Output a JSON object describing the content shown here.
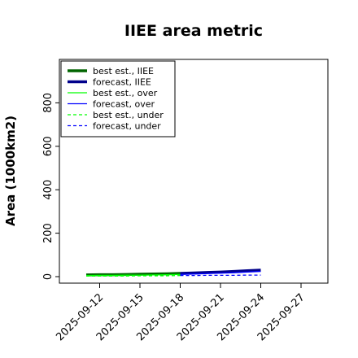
{
  "chart_data": {
    "type": "line",
    "title": "IIEE area metric",
    "xlabel": "",
    "ylabel": "Area (1000km2)",
    "x_ticks": [
      "2025-09-12",
      "2025-09-15",
      "2025-09-18",
      "2025-09-21",
      "2025-09-24",
      "2025-09-27"
    ],
    "highlight_tick": "2025-09-18",
    "highlight_color": "#228b22",
    "xlim": [
      "2025-09-09",
      "2025-09-29"
    ],
    "ylim": [
      -30,
      1000
    ],
    "y_ticks": [
      0,
      200,
      400,
      600,
      800
    ],
    "grid": false,
    "legend_position": "top-left",
    "series": [
      {
        "name": "best est., IIEE",
        "color": "#006400",
        "style": "solid",
        "width": "thick",
        "x": [
          "2025-09-11",
          "2025-09-12",
          "2025-09-13",
          "2025-09-14",
          "2025-09-15",
          "2025-09-16",
          "2025-09-17",
          "2025-09-18"
        ],
        "y": [
          8,
          9,
          9,
          10,
          11,
          12,
          13,
          15
        ]
      },
      {
        "name": "forecast, IIEE",
        "color": "#00008b",
        "style": "solid",
        "width": "thick",
        "x": [
          "2025-09-18",
          "2025-09-19",
          "2025-09-20",
          "2025-09-21",
          "2025-09-22",
          "2025-09-23",
          "2025-09-24"
        ],
        "y": [
          15,
          17,
          19,
          21,
          24,
          27,
          30
        ]
      },
      {
        "name": "best est., over",
        "color": "#00ff00",
        "style": "solid",
        "width": "thin",
        "x": [
          "2025-09-11",
          "2025-09-12",
          "2025-09-13",
          "2025-09-14",
          "2025-09-15",
          "2025-09-16",
          "2025-09-17",
          "2025-09-18"
        ],
        "y": [
          5,
          6,
          6,
          7,
          7,
          8,
          9,
          10
        ]
      },
      {
        "name": "forecast, over",
        "color": "#0000ff",
        "style": "solid",
        "width": "thin",
        "x": [
          "2025-09-18",
          "2025-09-19",
          "2025-09-20",
          "2025-09-21",
          "2025-09-22",
          "2025-09-23",
          "2025-09-24"
        ],
        "y": [
          10,
          12,
          14,
          16,
          18,
          21,
          24
        ]
      },
      {
        "name": "best est., under",
        "color": "#00ff00",
        "style": "dashed",
        "width": "thin",
        "x": [
          "2025-09-11",
          "2025-09-12",
          "2025-09-13",
          "2025-09-14",
          "2025-09-15",
          "2025-09-16",
          "2025-09-17",
          "2025-09-18"
        ],
        "y": [
          3,
          3,
          3,
          3,
          4,
          4,
          4,
          5
        ]
      },
      {
        "name": "forecast, under",
        "color": "#0000ff",
        "style": "dashed",
        "width": "thin",
        "x": [
          "2025-09-18",
          "2025-09-19",
          "2025-09-20",
          "2025-09-21",
          "2025-09-22",
          "2025-09-23",
          "2025-09-24"
        ],
        "y": [
          5,
          5,
          6,
          6,
          6,
          7,
          7
        ]
      }
    ]
  }
}
